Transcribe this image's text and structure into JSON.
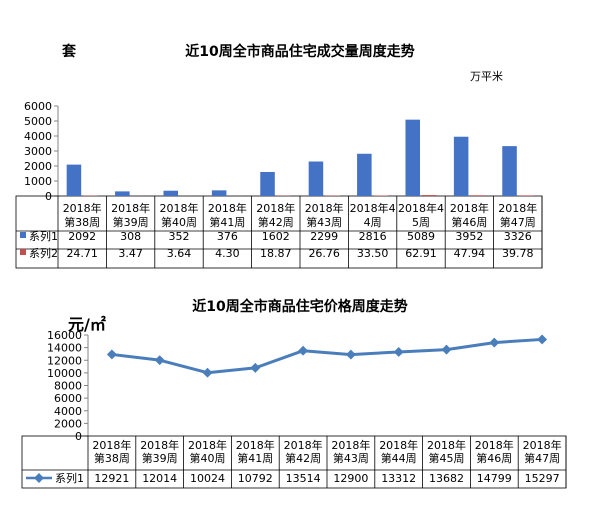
{
  "chart_data": [
    {
      "type": "bar",
      "title": "近10周全市商品住宅成交量周度走势",
      "left_unit": "套",
      "right_unit": "万平米",
      "categories": [
        [
          "2018年",
          "第38周"
        ],
        [
          "2018年",
          "第39周"
        ],
        [
          "2018年",
          "第40周"
        ],
        [
          "2018年",
          "第41周"
        ],
        [
          "2018年",
          "第42周"
        ],
        [
          "2018年",
          "第43周"
        ],
        [
          "2018年4",
          "4周"
        ],
        [
          "2018年4",
          "5周"
        ],
        [
          "2018年",
          "第46周"
        ],
        [
          "2018年",
          "第47周"
        ]
      ],
      "series": [
        {
          "name": "系列1",
          "color": "#4472C4",
          "values": [
            2092,
            308,
            352,
            376,
            1602,
            2299,
            2816,
            5089,
            3952,
            3326
          ],
          "labels": [
            "2092",
            "308",
            "352",
            "376",
            "1602",
            "2299",
            "2816",
            "5089",
            "3952",
            "3326"
          ]
        },
        {
          "name": "系列2",
          "color": "#C0504D",
          "values": [
            24.71,
            3.47,
            3.64,
            4.3,
            18.87,
            26.76,
            33.5,
            62.91,
            47.94,
            39.78
          ],
          "labels": [
            "24.71",
            "3.47",
            "3.64",
            "4.30",
            "18.87",
            "26.76",
            "33.50",
            "62.91",
            "47.94",
            "39.78"
          ]
        }
      ],
      "ylim": [
        0,
        6000
      ],
      "yticks": [
        "0",
        "1000",
        "2000",
        "3000",
        "4000",
        "5000",
        "6000"
      ],
      "grid": false,
      "legend": "data-table"
    },
    {
      "type": "line",
      "title": "近10周全市商品住宅价格周度走势",
      "left_unit": "元/㎡",
      "categories": [
        [
          "2018年",
          "第38周"
        ],
        [
          "2018年",
          "第39周"
        ],
        [
          "2018年",
          "第40周"
        ],
        [
          "2018年",
          "第41周"
        ],
        [
          "2018年",
          "第42周"
        ],
        [
          "2018年",
          "第43周"
        ],
        [
          "2018年",
          "第44周"
        ],
        [
          "2018年",
          "第45周"
        ],
        [
          "2018年",
          "第46周"
        ],
        [
          "2018年",
          "第47周"
        ]
      ],
      "series": [
        {
          "name": "系列1",
          "color": "#4A7EBB",
          "values": [
            12921,
            12014,
            10024,
            10792,
            13514,
            12900,
            13312,
            13682,
            14799,
            15297
          ],
          "labels": [
            "12921",
            "12014",
            "10024",
            "10792",
            "13514",
            "12900",
            "13312",
            "13682",
            "14799",
            "15297"
          ]
        }
      ],
      "ylim": [
        0,
        16000
      ],
      "yticks": [
        "0",
        "2000",
        "4000",
        "6000",
        "8000",
        "10000",
        "12000",
        "14000",
        "16000"
      ],
      "grid": false,
      "legend": "data-table"
    }
  ]
}
